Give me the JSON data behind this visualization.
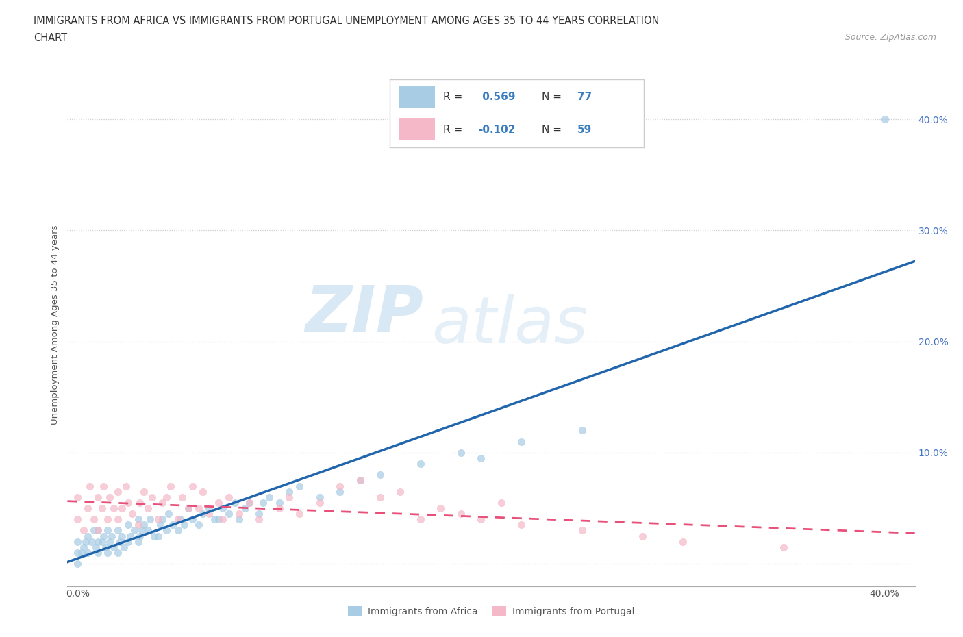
{
  "title_line1": "IMMIGRANTS FROM AFRICA VS IMMIGRANTS FROM PORTUGAL UNEMPLOYMENT AMONG AGES 35 TO 44 YEARS CORRELATION",
  "title_line2": "CHART",
  "source": "Source: ZipAtlas.com",
  "ylabel": "Unemployment Among Ages 35 to 44 years",
  "xlim": [
    -0.005,
    0.415
  ],
  "ylim": [
    -0.02,
    0.45
  ],
  "xticks": [
    0.0,
    0.1,
    0.2,
    0.3,
    0.4
  ],
  "yticks": [
    0.0,
    0.1,
    0.2,
    0.3,
    0.4
  ],
  "R_africa": 0.569,
  "N_africa": 77,
  "R_portugal": -0.102,
  "N_portugal": 59,
  "color_africa": "#a8cce4",
  "color_portugal": "#f4b8c8",
  "color_africa_line": "#2166ac",
  "color_portugal_line": "#e8507a",
  "legend_label_africa": "Immigrants from Africa",
  "legend_label_portugal": "Immigrants from Portugal",
  "watermark_ZIP": "ZIP",
  "watermark_atlas": "atlas",
  "africa_x": [
    0.0,
    0.0,
    0.0,
    0.002,
    0.003,
    0.004,
    0.005,
    0.005,
    0.007,
    0.008,
    0.009,
    0.01,
    0.01,
    0.01,
    0.012,
    0.013,
    0.014,
    0.015,
    0.015,
    0.016,
    0.017,
    0.018,
    0.02,
    0.02,
    0.021,
    0.022,
    0.023,
    0.025,
    0.025,
    0.026,
    0.028,
    0.03,
    0.03,
    0.031,
    0.032,
    0.033,
    0.035,
    0.036,
    0.038,
    0.04,
    0.041,
    0.042,
    0.044,
    0.045,
    0.047,
    0.05,
    0.051,
    0.053,
    0.055,
    0.057,
    0.06,
    0.062,
    0.065,
    0.068,
    0.07,
    0.072,
    0.075,
    0.078,
    0.08,
    0.083,
    0.085,
    0.09,
    0.092,
    0.095,
    0.1,
    0.105,
    0.11,
    0.12,
    0.13,
    0.14,
    0.15,
    0.17,
    0.19,
    0.2,
    0.22,
    0.25,
    0.4
  ],
  "africa_y": [
    0.0,
    0.01,
    0.02,
    0.01,
    0.015,
    0.02,
    0.01,
    0.025,
    0.02,
    0.03,
    0.015,
    0.01,
    0.02,
    0.03,
    0.02,
    0.025,
    0.015,
    0.01,
    0.03,
    0.02,
    0.025,
    0.015,
    0.01,
    0.03,
    0.02,
    0.025,
    0.015,
    0.02,
    0.035,
    0.025,
    0.03,
    0.02,
    0.04,
    0.025,
    0.03,
    0.035,
    0.03,
    0.04,
    0.025,
    0.025,
    0.035,
    0.04,
    0.03,
    0.045,
    0.035,
    0.03,
    0.04,
    0.035,
    0.05,
    0.04,
    0.035,
    0.045,
    0.05,
    0.04,
    0.04,
    0.05,
    0.045,
    0.055,
    0.04,
    0.05,
    0.055,
    0.045,
    0.055,
    0.06,
    0.055,
    0.065,
    0.07,
    0.06,
    0.065,
    0.075,
    0.08,
    0.09,
    0.1,
    0.095,
    0.11,
    0.12,
    0.4
  ],
  "portugal_x": [
    0.0,
    0.0,
    0.003,
    0.005,
    0.006,
    0.008,
    0.01,
    0.01,
    0.012,
    0.013,
    0.015,
    0.016,
    0.018,
    0.02,
    0.02,
    0.022,
    0.024,
    0.025,
    0.027,
    0.03,
    0.031,
    0.033,
    0.035,
    0.037,
    0.04,
    0.042,
    0.044,
    0.046,
    0.05,
    0.052,
    0.055,
    0.057,
    0.06,
    0.062,
    0.065,
    0.07,
    0.072,
    0.075,
    0.08,
    0.085,
    0.09,
    0.1,
    0.105,
    0.11,
    0.12,
    0.13,
    0.14,
    0.15,
    0.16,
    0.17,
    0.18,
    0.19,
    0.2,
    0.21,
    0.22,
    0.25,
    0.28,
    0.3,
    0.35
  ],
  "portugal_y": [
    0.04,
    0.06,
    0.03,
    0.05,
    0.07,
    0.04,
    0.03,
    0.06,
    0.05,
    0.07,
    0.04,
    0.06,
    0.05,
    0.04,
    0.065,
    0.05,
    0.07,
    0.055,
    0.045,
    0.035,
    0.055,
    0.065,
    0.05,
    0.06,
    0.04,
    0.055,
    0.06,
    0.07,
    0.04,
    0.06,
    0.05,
    0.07,
    0.05,
    0.065,
    0.045,
    0.055,
    0.04,
    0.06,
    0.045,
    0.055,
    0.04,
    0.05,
    0.06,
    0.045,
    0.055,
    0.07,
    0.075,
    0.06,
    0.065,
    0.04,
    0.05,
    0.045,
    0.04,
    0.055,
    0.035,
    0.03,
    0.025,
    0.02,
    0.015
  ]
}
